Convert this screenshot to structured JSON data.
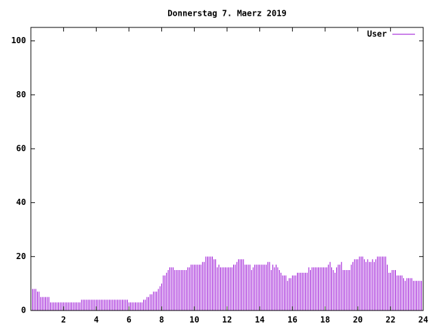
{
  "chart_data": {
    "type": "impulse",
    "title": "Donnerstag 7. Maerz 2019",
    "x": [
      0,
      0.1,
      0.2,
      0.3,
      0.4,
      0.5,
      0.6,
      0.7,
      0.8,
      0.9,
      1,
      1.1,
      1.2,
      1.3,
      1.4,
      1.5,
      1.6,
      1.7,
      1.8,
      1.9,
      2,
      2.1,
      2.2,
      2.3,
      2.4,
      2.5,
      2.6,
      2.7,
      2.8,
      2.9,
      3,
      3.1,
      3.2,
      3.3,
      3.4,
      3.5,
      3.6,
      3.7,
      3.8,
      3.9,
      4,
      4.1,
      4.2,
      4.3,
      4.4,
      4.5,
      4.6,
      4.7,
      4.8,
      4.9,
      5,
      5.1,
      5.2,
      5.3,
      5.4,
      5.5,
      5.6,
      5.7,
      5.8,
      5.9,
      6,
      6.1,
      6.2,
      6.3,
      6.4,
      6.5,
      6.6,
      6.7,
      6.8,
      6.9,
      7,
      7.1,
      7.2,
      7.3,
      7.4,
      7.5,
      7.6,
      7.7,
      7.8,
      7.9,
      8,
      8.1,
      8.2,
      8.3,
      8.4,
      8.5,
      8.6,
      8.7,
      8.8,
      8.9,
      9,
      9.1,
      9.2,
      9.3,
      9.4,
      9.5,
      9.6,
      9.7,
      9.8,
      9.9,
      10,
      10.1,
      10.2,
      10.3,
      10.4,
      10.5,
      10.6,
      10.7,
      10.8,
      10.9,
      11,
      11.1,
      11.2,
      11.3,
      11.4,
      11.5,
      11.6,
      11.7,
      11.8,
      11.9,
      12,
      12.1,
      12.2,
      12.3,
      12.4,
      12.5,
      12.6,
      12.7,
      12.8,
      12.9,
      13,
      13.1,
      13.2,
      13.3,
      13.4,
      13.5,
      13.6,
      13.7,
      13.8,
      13.9,
      14,
      14.1,
      14.2,
      14.3,
      14.4,
      14.5,
      14.6,
      14.7,
      14.8,
      14.9,
      15,
      15.1,
      15.2,
      15.3,
      15.4,
      15.5,
      15.6,
      15.7,
      15.8,
      15.9,
      16,
      16.1,
      16.2,
      16.3,
      16.4,
      16.5,
      16.6,
      16.7,
      16.8,
      16.9,
      17,
      17.1,
      17.2,
      17.3,
      17.4,
      17.5,
      17.6,
      17.7,
      17.8,
      17.9,
      18,
      18.1,
      18.2,
      18.3,
      18.4,
      18.5,
      18.6,
      18.7,
      18.8,
      18.9,
      19,
      19.1,
      19.2,
      19.3,
      19.4,
      19.5,
      19.6,
      19.7,
      19.8,
      19.9,
      20,
      20.1,
      20.2,
      20.3,
      20.4,
      20.5,
      20.6,
      20.7,
      20.8,
      20.9,
      21,
      21.1,
      21.2,
      21.3,
      21.4,
      21.5,
      21.6,
      21.7,
      21.8,
      21.9,
      22,
      22.1,
      22.2,
      22.3,
      22.4,
      22.5,
      22.6,
      22.7,
      22.8,
      22.9,
      23,
      23.1,
      23.2,
      23.3,
      23.4,
      23.5,
      23.6,
      23.7,
      23.8,
      23.9
    ],
    "series": [
      {
        "name": "User",
        "color": "#9400d3",
        "values": [
          9,
          8,
          8,
          8,
          7,
          7,
          5,
          5,
          5,
          5,
          5,
          5,
          3,
          3,
          3,
          3,
          3,
          3,
          3,
          3,
          3,
          3,
          3,
          3,
          3,
          3,
          3,
          3,
          3,
          3,
          3,
          4,
          4,
          4,
          4,
          4,
          4,
          4,
          4,
          4,
          4,
          4,
          4,
          4,
          4,
          4,
          4,
          4,
          4,
          4,
          4,
          4,
          4,
          4,
          4,
          4,
          4,
          4,
          4,
          4,
          3,
          3,
          3,
          3,
          3,
          3,
          3,
          3,
          3,
          4,
          4,
          5,
          5,
          6,
          6,
          7,
          7,
          7,
          8,
          9,
          10,
          13,
          13,
          14,
          15,
          16,
          16,
          16,
          15,
          15,
          15,
          15,
          15,
          15,
          15,
          15,
          16,
          16,
          17,
          17,
          17,
          17,
          17,
          17,
          17,
          18,
          18,
          20,
          20,
          20,
          20,
          20,
          19,
          19,
          16,
          17,
          16,
          16,
          16,
          16,
          16,
          16,
          16,
          16,
          17,
          17,
          18,
          19,
          19,
          19,
          19,
          17,
          17,
          17,
          17,
          15,
          16,
          17,
          17,
          17,
          17,
          17,
          17,
          17,
          17,
          18,
          18,
          15,
          17,
          16,
          17,
          16,
          15,
          14,
          13,
          13,
          13,
          11,
          12,
          12,
          13,
          13,
          13,
          14,
          14,
          14,
          14,
          14,
          14,
          14,
          16,
          15,
          16,
          16,
          16,
          16,
          16,
          16,
          16,
          16,
          16,
          16,
          17,
          18,
          16,
          15,
          14,
          16,
          17,
          17,
          18,
          15,
          15,
          15,
          15,
          15,
          17,
          18,
          19,
          19,
          19,
          20,
          20,
          20,
          19,
          18,
          19,
          18,
          18,
          19,
          18,
          19,
          20,
          20,
          20,
          20,
          20,
          20,
          17,
          14,
          14,
          15,
          15,
          15,
          13,
          13,
          13,
          13,
          12,
          11,
          12,
          12,
          12,
          12,
          11,
          11,
          11,
          11,
          11,
          11
        ]
      }
    ],
    "xlim": [
      0,
      24
    ],
    "xticks": [
      2,
      4,
      6,
      8,
      10,
      12,
      14,
      16,
      18,
      20,
      22,
      24
    ],
    "ylim": [
      0,
      105
    ],
    "yticks": [
      0,
      20,
      40,
      60,
      80,
      100
    ]
  }
}
